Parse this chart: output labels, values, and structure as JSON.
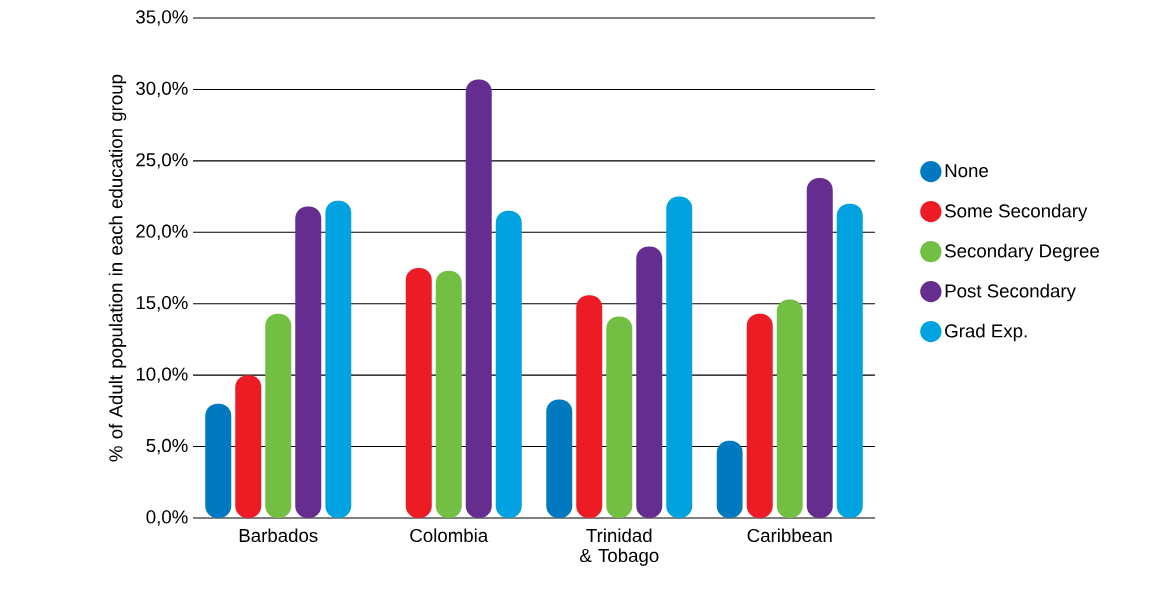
{
  "chart_data": {
    "type": "bar",
    "ylabel": "% of Adult population in each education group",
    "categories": [
      "Barbados",
      "Colombia",
      "Trinidad & Tobago",
      "Caribbean"
    ],
    "series": [
      {
        "name": "None",
        "color": "#0079c1",
        "values": [
          8.0,
          null,
          8.3,
          5.4
        ]
      },
      {
        "name": "Some Secondary",
        "color": "#ed1c24",
        "values": [
          10.0,
          17.5,
          15.6,
          14.3
        ]
      },
      {
        "name": "Secondary Degree",
        "color": "#72bf44",
        "values": [
          14.3,
          17.3,
          14.1,
          15.3
        ]
      },
      {
        "name": "Post Secondary",
        "color": "#652d8f",
        "values": [
          21.8,
          30.7,
          19.0,
          23.8
        ]
      },
      {
        "name": "Grad Exp.",
        "color": "#00a3e0",
        "values": [
          22.2,
          21.5,
          22.5,
          22.0
        ]
      }
    ],
    "ylim": [
      0,
      35
    ],
    "yticks": [
      {
        "value": 0,
        "label": "0,0%"
      },
      {
        "value": 5,
        "label": "5,0%"
      },
      {
        "value": 10,
        "label": "10,0%"
      },
      {
        "value": 15,
        "label": "15,0%"
      },
      {
        "value": 20,
        "label": "20,0%"
      },
      {
        "value": 25,
        "label": "25,0%"
      },
      {
        "value": 30,
        "label": "30,0%"
      },
      {
        "value": 35,
        "label": "35,0%"
      }
    ],
    "grid": "y",
    "legend": "right"
  }
}
